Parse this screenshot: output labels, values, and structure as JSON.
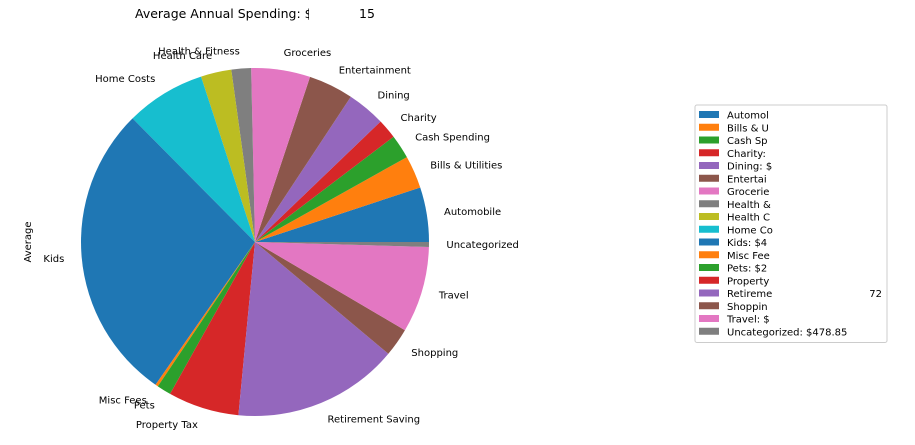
{
  "chart_data": {
    "type": "pie",
    "title": "Average Annual Spending: $1",
    "title_suffix": "15",
    "ylabel": "Average",
    "start_angle_deg": 0,
    "direction": "counterclockwise",
    "categories": [
      "Automobile",
      "Bills & Utilities",
      "Cash Spending",
      "Charity",
      "Dining",
      "Entertainment",
      "Groceries",
      "Health & Fitness",
      "Health Care",
      "Home Costs",
      "Kids",
      "Misc Fees",
      "Pets",
      "Property Tax",
      "Retirement Saving",
      "Shopping",
      "Travel",
      "Uncategorized"
    ],
    "values": [
      5.0,
      3.0,
      2.2,
      1.8,
      3.5,
      4.1,
      5.4,
      1.8,
      2.8,
      7.3,
      27.5,
      0.25,
      1.3,
      6.5,
      15.2,
      2.6,
      7.9,
      0.45
    ],
    "colors": [
      "#1f77b4",
      "#ff7f0e",
      "#2ca02c",
      "#d62728",
      "#9467bd",
      "#8c564b",
      "#e377c2",
      "#7f7f7f",
      "#bcbd22",
      "#17becf",
      "#1f77b4",
      "#ff7f0e",
      "#2ca02c",
      "#d62728",
      "#9467bd",
      "#8c564b",
      "#e377c2",
      "#7f7f7f"
    ],
    "legend_position": "center-right",
    "legend_entries": [
      {
        "name": "Automobile",
        "text": "Automol"
      },
      {
        "name": "Bills & Utilities",
        "text": "Bills & U"
      },
      {
        "name": "Cash Spending",
        "text": "Cash Sp"
      },
      {
        "name": "Charity",
        "text": "Charity:"
      },
      {
        "name": "Dining",
        "text": "Dining: $"
      },
      {
        "name": "Entertainment",
        "text": "Entertai"
      },
      {
        "name": "Groceries",
        "text": "Grocerie"
      },
      {
        "name": "Health & Fitness",
        "text": "Health &"
      },
      {
        "name": "Health Care",
        "text": "Health C"
      },
      {
        "name": "Home Costs",
        "text": "Home Co"
      },
      {
        "name": "Kids",
        "text": "Kids: $4"
      },
      {
        "name": "Misc Fees",
        "text": "Misc Fee"
      },
      {
        "name": "Pets",
        "text": "Pets: $2"
      },
      {
        "name": "Property Tax",
        "text": "Property"
      },
      {
        "name": "Retirement Saving",
        "text": "Retireme",
        "suffix": "72"
      },
      {
        "name": "Shopping",
        "text": "Shoppin"
      },
      {
        "name": "Travel",
        "text": "Travel: $"
      },
      {
        "name": "Uncategorized",
        "text": "Uncategorized: $478.85"
      }
    ]
  }
}
